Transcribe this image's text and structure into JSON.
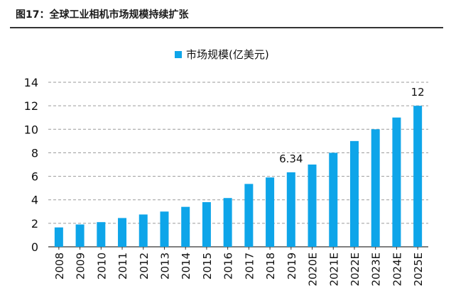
{
  "figure_title": "图17：全球工业相机市场规模持续扩张",
  "colors": {
    "bar": "#0EA5E9",
    "grid": "#9a9a9a",
    "axis": "#333333"
  },
  "chart_data": {
    "type": "bar",
    "title": "",
    "xlabel": "",
    "ylabel": "",
    "legend": {
      "position": "top",
      "entries": [
        "市场规模(亿美元)"
      ]
    },
    "ylim": [
      0,
      14
    ],
    "yticks": [
      0,
      2,
      4,
      6,
      8,
      10,
      12,
      14
    ],
    "grid": true,
    "categories": [
      "2008",
      "2009",
      "2010",
      "2011",
      "2012",
      "2013",
      "2014",
      "2015",
      "2016",
      "2017",
      "2018",
      "2019",
      "2020E",
      "2021E",
      "2022E",
      "2023E",
      "2024E",
      "2025E"
    ],
    "series": [
      {
        "name": "市场规模(亿美元)",
        "values": [
          1.65,
          1.9,
          2.1,
          2.45,
          2.75,
          3.0,
          3.4,
          3.8,
          4.15,
          5.35,
          5.9,
          6.34,
          7.0,
          8.0,
          9.0,
          10.0,
          11.0,
          12.0
        ]
      }
    ],
    "data_labels": [
      {
        "category": "2019",
        "text": "6.34"
      },
      {
        "category": "2025E",
        "text": "12"
      }
    ]
  }
}
